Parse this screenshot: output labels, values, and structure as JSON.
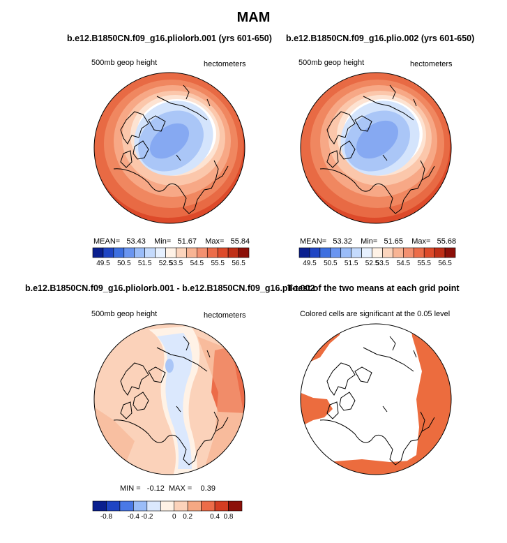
{
  "figure_title": "MAM",
  "panels": {
    "top_left": {
      "title": "b.e12.B1850CN.f09_g16.pliolorb.001 (yrs 601-650)",
      "left_label": "500mb geop height",
      "right_label": "hectometers",
      "stats": {
        "mean_label": "MEAN=",
        "mean": "53.43",
        "min_label": "Min=",
        "min": "51.67",
        "max_label": "Max=",
        "max": "55.84"
      }
    },
    "top_right": {
      "title": "b.e12.B1850CN.f09_g16.plio.002 (yrs 601-650)",
      "left_label": "500mb geop height",
      "right_label": "hectometers",
      "stats": {
        "mean_label": "MEAN=",
        "mean": "53.32",
        "min_label": "Min=",
        "min": "51.65",
        "max_label": "Max=",
        "max": "55.68"
      }
    },
    "bottom_left": {
      "title": "b.e12.B1850CN.f09_g16.pliolorb.001 - b.e12.B1850CN.f09_g16.plio.002",
      "left_label": "500mb geop height",
      "right_label": "hectometers",
      "stats": {
        "text": "MIN =   -0.12  MAX =    0.39"
      }
    },
    "bottom_right": {
      "title": "T-test of the two means at each grid point",
      "subtitle": "Colored cells are significant at the 0.05 level"
    }
  },
  "colorbars": {
    "absolute": {
      "labels": [
        "49.5",
        "50.5",
        "51.5",
        "52.5",
        "53.5",
        "54.5",
        "55.5",
        "56.5"
      ],
      "colors": [
        "#0a1f8f",
        "#1f45c4",
        "#3d6fe0",
        "#6a95f0",
        "#9abcf8",
        "#c4dafc",
        "#e6f0fe",
        "#fff2e6",
        "#fcd5bd",
        "#f8b494",
        "#f39070",
        "#ec6c49",
        "#dd4a2a",
        "#bf2f17",
        "#8c1009"
      ]
    },
    "difference": {
      "labels": [
        "-0.8",
        "-0.4",
        "-0.2",
        "0",
        "0.2",
        "0.4",
        "0.8"
      ],
      "colors": [
        "#0a1f8f",
        "#1f45c4",
        "#4a79e6",
        "#9abcf8",
        "#dbe8fd",
        "#fff2e6",
        "#fbd2ba",
        "#f5a883",
        "#ec6c49",
        "#d43d22",
        "#8c1009"
      ]
    }
  },
  "map_colors": {
    "deep_blue": "#86a9f2",
    "mid_blue": "#aac6f7",
    "light_blue": "#d4e4fc",
    "white": "#ffffff",
    "cream": "#fde3d2",
    "peach": "#fbc7ab",
    "salmon": "#f7a886",
    "orange": "#f08760",
    "red_orange": "#e86a44",
    "red": "#dd4a2a",
    "significant": "#ec6c3e"
  }
}
